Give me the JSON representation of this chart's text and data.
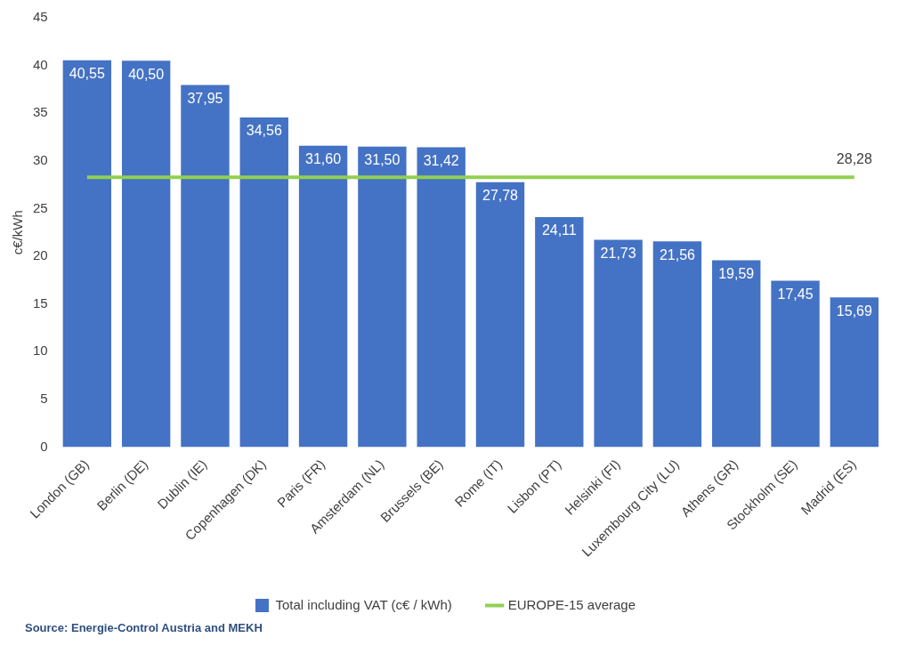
{
  "chart_data": {
    "type": "bar",
    "ylabel": "c€/kWh",
    "categories": [
      "London (GB)",
      "Berlin (DE)",
      "Dublin (IE)",
      "Copenhagen (DK)",
      "Paris (FR)",
      "Amsterdam (NL)",
      "Brussels (BE)",
      "Rome (IT)",
      "Lisbon (PT)",
      "Helsinki (FI)",
      "Luxembourg City (LU)",
      "Athens (GR)",
      "Stockholm (SE)",
      "Madrid (ES)"
    ],
    "series": [
      {
        "name": "Total including VAT (c€ / kWh)",
        "color": "#4472c4",
        "values": [
          40.55,
          40.5,
          37.95,
          34.56,
          31.6,
          31.5,
          31.42,
          27.78,
          24.11,
          21.73,
          21.56,
          19.59,
          17.45,
          15.69
        ],
        "value_labels": [
          "40,55",
          "40,50",
          "37,95",
          "34,56",
          "31,60",
          "31,50",
          "31,42",
          "27,78",
          "24,11",
          "21,73",
          "21,56",
          "19,59",
          "17,45",
          "15,69"
        ]
      },
      {
        "name": "EUROPE-15 average",
        "type": "line",
        "color": "#92d050",
        "values": [
          28.28,
          28.28,
          28.28,
          28.28,
          28.28,
          28.28,
          28.28,
          28.28,
          28.28,
          28.28,
          28.28,
          28.28,
          28.28,
          28.28
        ],
        "value_labels": [
          null,
          null,
          null,
          null,
          null,
          null,
          null,
          null,
          null,
          null,
          null,
          null,
          null,
          "28,28"
        ]
      }
    ],
    "ylim": [
      0,
      45
    ],
    "yticks": [
      0,
      5,
      10,
      15,
      20,
      25,
      30,
      35,
      40,
      45
    ],
    "grid": false,
    "legend": "bottom",
    "marker": "none",
    "line_style": "solid",
    "annotations": [
      "Source: Energie-Control Austria and MEKH"
    ]
  }
}
